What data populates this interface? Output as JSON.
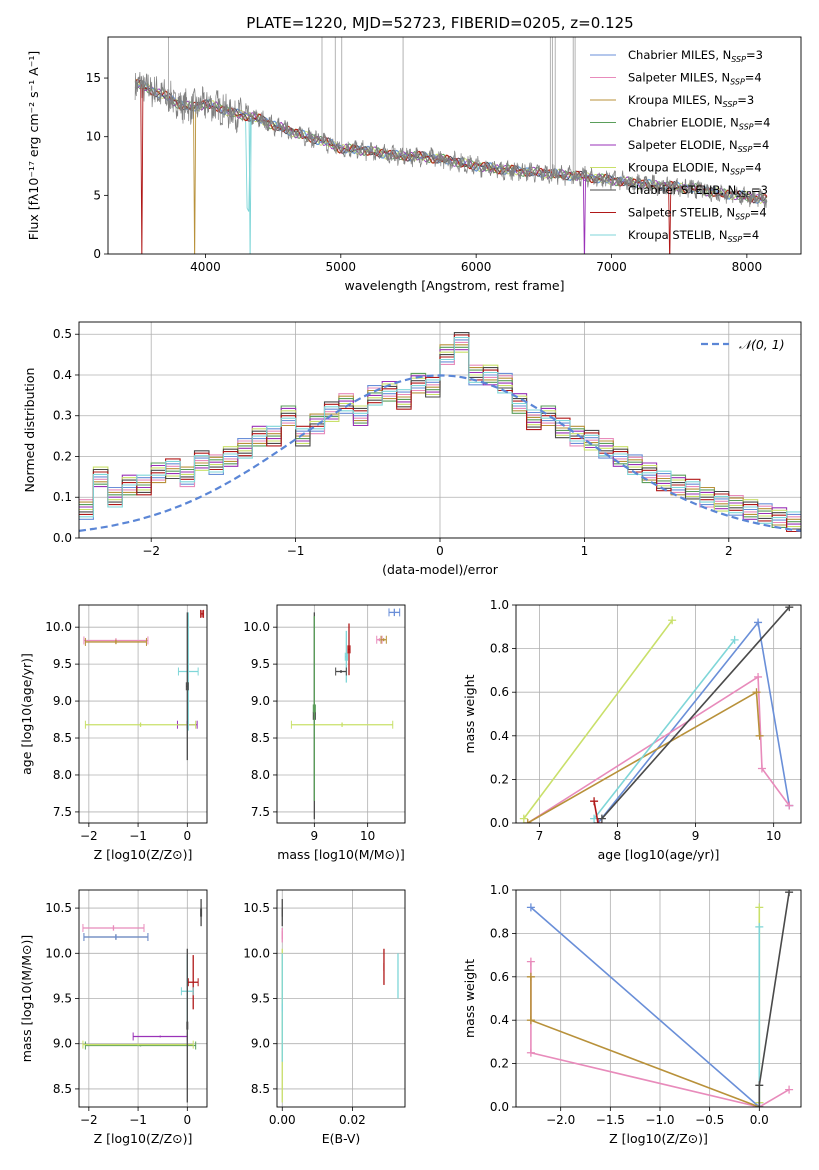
{
  "figure": {
    "title": "PLATE=1220, MJD=52723, FIBERID=0205, z=0.125"
  },
  "models": [
    {
      "name": "Chabrier MILES",
      "nssp": "3",
      "color": "#6a8fd8"
    },
    {
      "name": "Salpeter MILES",
      "nssp": "4",
      "color": "#e88bbb"
    },
    {
      "name": "Kroupa MILES",
      "nssp": "3",
      "color": "#b8913a"
    },
    {
      "name": "Chabrier ELODIE",
      "nssp": "4",
      "color": "#5a9e5a"
    },
    {
      "name": "Salpeter ELODIE",
      "nssp": "4",
      "color": "#9a32b8"
    },
    {
      "name": "Kroupa ELODIE",
      "nssp": "4",
      "color": "#c9e06a"
    },
    {
      "name": "Chabrier STELIB",
      "nssp": "3",
      "color": "#4a4a4a"
    },
    {
      "name": "Salpeter STELIB",
      "nssp": "4",
      "color": "#b01818"
    },
    {
      "name": "Kroupa STELIB",
      "nssp": "4",
      "color": "#7fd6d8"
    }
  ],
  "legend_nssp_prefix": "N",
  "legend_nssp_sub": "SSP",
  "chart_data": [
    {
      "id": "spectrum",
      "type": "line",
      "title": "PLATE=1220, MJD=52723, FIBERID=0205, z=0.125",
      "xlabel": "wavelength [Angstrom, rest frame]",
      "ylabel": "Flux [fλ10⁻¹⁷ erg cm⁻² s⁻¹ A⁻¹]",
      "xlim": [
        3280,
        8400
      ],
      "ylim": [
        0,
        18.5
      ],
      "xticks": [
        4000,
        5000,
        6000,
        7000,
        8000
      ],
      "yticks": [
        0,
        5,
        10,
        15
      ],
      "legend": "top-right",
      "continuum": [
        [
          3500,
          14.5
        ],
        [
          3600,
          14.0
        ],
        [
          3700,
          13.5
        ],
        [
          3800,
          12.8
        ],
        [
          3900,
          12.5
        ],
        [
          4000,
          12.8
        ],
        [
          4100,
          12.5
        ],
        [
          4200,
          12.0
        ],
        [
          4300,
          11.8
        ],
        [
          4400,
          11.5
        ],
        [
          4500,
          11.0
        ],
        [
          4700,
          10.2
        ],
        [
          4900,
          9.5
        ],
        [
          5000,
          9.0
        ],
        [
          5200,
          8.8
        ],
        [
          5400,
          8.4
        ],
        [
          5600,
          8.3
        ],
        [
          5800,
          8.0
        ],
        [
          6000,
          7.5
        ],
        [
          6200,
          7.2
        ],
        [
          6400,
          7.0
        ],
        [
          6600,
          6.8
        ],
        [
          6800,
          6.6
        ],
        [
          7000,
          6.3
        ],
        [
          7200,
          6.0
        ],
        [
          7400,
          5.8
        ],
        [
          7600,
          5.6
        ],
        [
          7800,
          5.2
        ],
        [
          8000,
          4.9
        ],
        [
          8150,
          4.6
        ]
      ],
      "emission_lines": [
        4861,
        4959,
        5007,
        6548,
        6563,
        6584,
        6717,
        6731,
        3727,
        5460
      ]
    },
    {
      "id": "residuals",
      "type": "line",
      "xlabel": "(data-model)/error",
      "ylabel": "Normed distribution",
      "xlim": [
        -2.5,
        2.5
      ],
      "ylim": [
        0,
        0.53
      ],
      "xticks": [
        -2,
        -1,
        0,
        1,
        2
      ],
      "yticks": [
        0.0,
        0.1,
        0.2,
        0.3,
        0.4,
        0.5
      ],
      "grid": true,
      "legend": "top-right",
      "gaussian_label": "𝒩(0, 1)",
      "bin_width": 0.1,
      "hist": [
        0.07,
        0.15,
        0.1,
        0.13,
        0.13,
        0.16,
        0.17,
        0.15,
        0.19,
        0.18,
        0.2,
        0.22,
        0.25,
        0.25,
        0.3,
        0.25,
        0.28,
        0.31,
        0.33,
        0.3,
        0.35,
        0.36,
        0.34,
        0.38,
        0.37,
        0.45,
        0.48,
        0.4,
        0.4,
        0.38,
        0.33,
        0.29,
        0.3,
        0.27,
        0.25,
        0.24,
        0.22,
        0.2,
        0.18,
        0.16,
        0.14,
        0.13,
        0.12,
        0.1,
        0.09,
        0.08,
        0.07,
        0.06,
        0.05,
        0.04
      ]
    },
    {
      "id": "age-vs-Z",
      "type": "scatter",
      "xlabel": "Z [log10(Z/Z⊙)]",
      "ylabel": "age  [log10(age/yr)]",
      "xlim": [
        -2.2,
        0.4
      ],
      "ylim": [
        7.35,
        10.3
      ],
      "xticks": [
        -2,
        -1,
        0
      ],
      "yticks": [
        7.5,
        8.0,
        8.5,
        9.0,
        9.5,
        10.0
      ],
      "points": [
        {
          "m": 1,
          "x": -1.45,
          "xerr": 0.65,
          "y": 9.82,
          "yerr": 0.03
        },
        {
          "m": 2,
          "x": -1.45,
          "xerr": 0.62,
          "y": 9.8,
          "yerr": 0.03
        },
        {
          "m": 4,
          "x": 0.0,
          "xerr": 0.2,
          "y": 8.68,
          "yerr": 0.05
        },
        {
          "m": 5,
          "x": -0.95,
          "xerr": 1.12,
          "y": 8.68,
          "yerr": 0.03
        },
        {
          "m": 8,
          "x": 0.02,
          "xerr": 0.2,
          "y": 9.4,
          "yerr": 0.8
        },
        {
          "m": 6,
          "x": 0.0,
          "xerr": 0.02,
          "y": 9.2,
          "yerr": 1.0
        },
        {
          "m": 7,
          "x": 0.3,
          "xerr": 0.03,
          "y": 10.18,
          "yerr": 0.05
        }
      ]
    },
    {
      "id": "age-vs-mass",
      "type": "scatter",
      "xlabel": "mass [log10(M/M⊙)]",
      "ylabel": "",
      "xlim": [
        8.3,
        10.7
      ],
      "ylim": [
        7.35,
        10.3
      ],
      "xticks": [
        9,
        10
      ],
      "yticks": [
        7.5,
        8.0,
        8.5,
        9.0,
        9.5,
        10.0
      ],
      "points": [
        {
          "m": 1,
          "x": 10.22,
          "xerr": 0.05,
          "y": 9.83,
          "yerr": 0.02
        },
        {
          "m": 2,
          "x": 10.3,
          "xerr": 0.05,
          "y": 9.83,
          "yerr": 0.02
        },
        {
          "m": 5,
          "x": 9.52,
          "xerr": 0.95,
          "y": 8.68,
          "yerr": 0.03
        },
        {
          "m": 6,
          "x": 9.0,
          "xerr": 0.02,
          "y": 8.8,
          "yerr": 1.4
        },
        {
          "m": 3,
          "x": 9.0,
          "xerr": 0.02,
          "y": 8.9,
          "yerr": 1.25
        },
        {
          "m": 8,
          "x": 9.6,
          "xerr": 0.02,
          "y": 9.6,
          "yerr": 0.35
        },
        {
          "m": 7,
          "x": 9.65,
          "xerr": 0.02,
          "y": 9.7,
          "yerr": 0.35
        },
        {
          "m": 6,
          "x": 9.5,
          "xerr": 0.1,
          "y": 9.4,
          "yerr": 0.02
        },
        {
          "m": 0,
          "x": 10.5,
          "xerr": 0.1,
          "y": 10.2,
          "yerr": 0.05
        }
      ]
    },
    {
      "id": "weight-vs-age",
      "type": "line",
      "xlabel": "age  [log10(age/yr)]",
      "ylabel": "mass weight",
      "xlim": [
        6.7,
        10.35
      ],
      "ylim": [
        0,
        1.0
      ],
      "xticks": [
        7,
        8,
        9,
        10
      ],
      "yticks": [
        0.0,
        0.2,
        0.4,
        0.6,
        0.8,
        1.0
      ],
      "series": [
        {
          "m": 0,
          "pts": [
            [
              7.75,
              0.0
            ],
            [
              9.8,
              0.92
            ],
            [
              10.2,
              0.08
            ]
          ]
        },
        {
          "m": 1,
          "pts": [
            [
              6.85,
              0.0
            ],
            [
              9.8,
              0.67
            ],
            [
              9.85,
              0.25
            ],
            [
              10.2,
              0.08
            ]
          ]
        },
        {
          "m": 2,
          "pts": [
            [
              6.85,
              0.0
            ],
            [
              9.78,
              0.6
            ],
            [
              9.82,
              0.4
            ]
          ]
        },
        {
          "m": 5,
          "pts": [
            [
              6.8,
              0.02
            ],
            [
              8.7,
              0.93
            ]
          ]
        },
        {
          "m": 8,
          "pts": [
            [
              7.7,
              0.02
            ],
            [
              9.5,
              0.84
            ]
          ]
        },
        {
          "m": 6,
          "pts": [
            [
              7.8,
              0.02
            ],
            [
              10.2,
              0.99
            ]
          ]
        },
        {
          "m": 7,
          "pts": [
            [
              7.7,
              0.1
            ],
            [
              7.75,
              0.0
            ]
          ]
        }
      ]
    },
    {
      "id": "mass-vs-Z",
      "type": "scatter",
      "xlabel": "Z [log10(Z/Z⊙)]",
      "ylabel": "mass [log10(M/M⊙)]",
      "xlim": [
        -2.2,
        0.4
      ],
      "ylim": [
        8.3,
        10.7
      ],
      "xticks": [
        -2,
        -1,
        0
      ],
      "yticks": [
        8.5,
        9.0,
        9.5,
        10.0,
        10.5
      ],
      "points": [
        {
          "m": 1,
          "x": -1.5,
          "xerr": 0.62,
          "y": 10.28,
          "yerr": 0.03
        },
        {
          "m": 2,
          "x": -1.45,
          "xerr": 0.65,
          "y": 10.18,
          "yerr": 0.03
        },
        {
          "m": 0,
          "x": -1.45,
          "xerr": 0.65,
          "y": 10.18,
          "yerr": 0.03
        },
        {
          "m": 6,
          "x": 0.28,
          "xerr": 0.01,
          "y": 10.45,
          "yerr": 0.15
        },
        {
          "m": 7,
          "x": 0.12,
          "xerr": 0.1,
          "y": 9.68,
          "yerr": 0.3
        },
        {
          "m": 8,
          "x": 0.0,
          "xerr": 0.12,
          "y": 9.58,
          "yerr": 0.4
        },
        {
          "m": 4,
          "x": -0.55,
          "xerr": 0.55,
          "y": 9.08,
          "yerr": 0.01
        },
        {
          "m": 3,
          "x": -0.95,
          "xerr": 1.12,
          "y": 8.98,
          "yerr": 0.01
        },
        {
          "m": 5,
          "x": -1.0,
          "xerr": 1.12,
          "y": 8.99,
          "yerr": 0.01
        },
        {
          "m": 6,
          "x": 0.0,
          "xerr": 0.01,
          "y": 9.2,
          "yerr": 0.85
        }
      ]
    },
    {
      "id": "mass-vs-EBV",
      "type": "scatter",
      "xlabel": "E(B-V)",
      "ylabel": "",
      "xlim": [
        -0.0015,
        0.035
      ],
      "ylim": [
        8.3,
        10.7
      ],
      "xticks": [
        0.0,
        0.02
      ],
      "yticks": [
        8.5,
        9.0,
        9.5,
        10.0,
        10.5
      ],
      "points": [
        {
          "m": 6,
          "x": 0.0,
          "xerr": 0.0,
          "y": 10.45,
          "yerr": 0.15
        },
        {
          "m": 1,
          "x": 0.0,
          "xerr": 0.0,
          "y": 10.2,
          "yerr": 0.08
        },
        {
          "m": 5,
          "x": 0.0,
          "xerr": 0.0,
          "y": 9.2,
          "yerr": 0.85
        },
        {
          "m": 8,
          "x": 0.0,
          "xerr": 0.0,
          "y": 9.4,
          "yerr": 0.6
        },
        {
          "m": 7,
          "x": 0.029,
          "xerr": 0.0,
          "y": 9.85,
          "yerr": 0.2
        },
        {
          "m": 8,
          "x": 0.033,
          "xerr": 0.0,
          "y": 9.75,
          "yerr": 0.25
        }
      ]
    },
    {
      "id": "weight-vs-Z",
      "type": "line",
      "xlabel": "Z [log10(Z/Z⊙)]",
      "ylabel": "mass weight",
      "xlim": [
        -2.45,
        0.42
      ],
      "ylim": [
        0,
        1.0
      ],
      "xticks": [
        -2.0,
        -1.5,
        -1.0,
        -0.5,
        0.0
      ],
      "yticks": [
        0.0,
        0.2,
        0.4,
        0.6,
        0.8,
        1.0
      ],
      "series": [
        {
          "m": 0,
          "pts": [
            [
              -2.3,
              0.92
            ],
            [
              0.0,
              0.0
            ],
            [
              0.0,
              0.02
            ]
          ]
        },
        {
          "m": 1,
          "pts": [
            [
              -2.3,
              0.67
            ],
            [
              -2.3,
              0.25
            ],
            [
              0.0,
              0.0
            ],
            [
              0.3,
              0.08
            ]
          ]
        },
        {
          "m": 2,
          "pts": [
            [
              -2.3,
              0.6
            ],
            [
              -2.3,
              0.4
            ],
            [
              0.0,
              0.0
            ]
          ]
        },
        {
          "m": 5,
          "pts": [
            [
              0.0,
              0.92
            ],
            [
              0.0,
              0.02
            ]
          ]
        },
        {
          "m": 8,
          "pts": [
            [
              0.0,
              0.83
            ],
            [
              0.0,
              0.0
            ]
          ]
        },
        {
          "m": 6,
          "pts": [
            [
              0.0,
              0.0
            ],
            [
              0.0,
              0.1
            ],
            [
              0.3,
              0.99
            ]
          ]
        }
      ]
    }
  ]
}
